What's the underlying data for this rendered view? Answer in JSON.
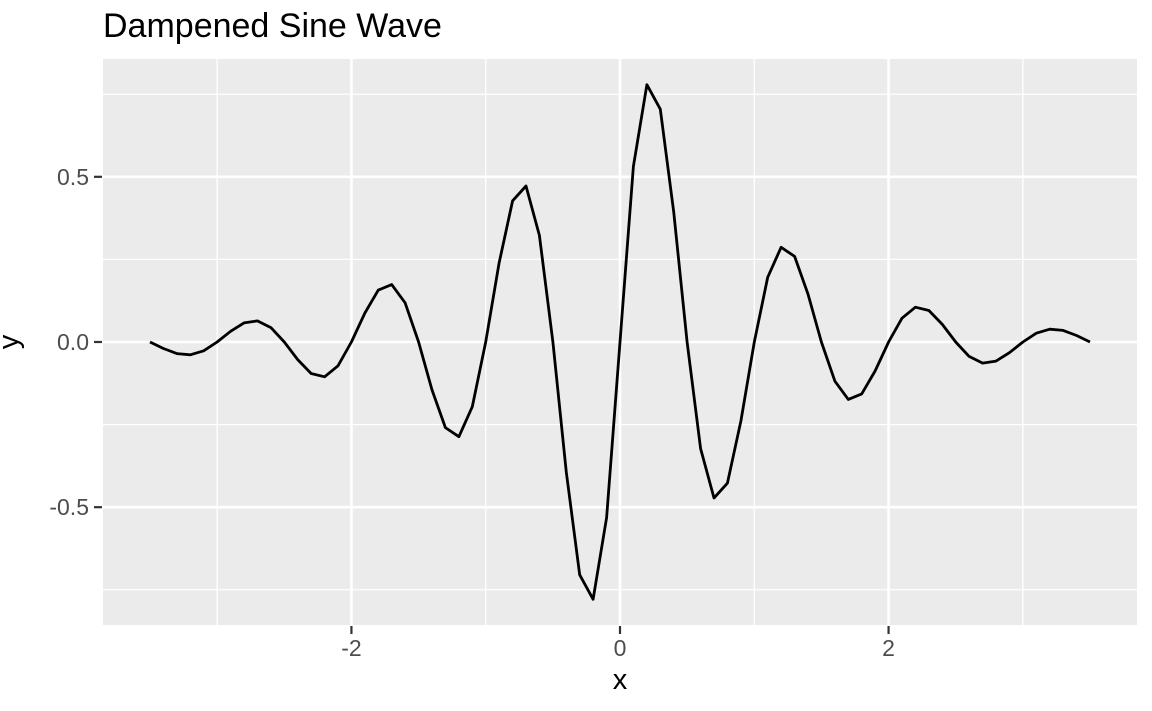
{
  "chart_data": {
    "type": "line",
    "title": "Dampened Sine Wave",
    "xlabel": "x",
    "ylabel": "y",
    "legend_position": "none",
    "grid": true,
    "xlim": [
      -3.85,
      3.85
    ],
    "ylim": [
      -0.8566,
      0.8566
    ],
    "x_major_ticks": [
      -2,
      0,
      2
    ],
    "x_major_labels": [
      "-2",
      "0",
      "2"
    ],
    "x_minor_ticks": [
      -3,
      -1,
      1,
      3
    ],
    "y_major_ticks": [
      -0.5,
      0,
      0.5
    ],
    "y_major_labels": [
      "-0.5",
      "0.0",
      "0.5"
    ],
    "y_minor_ticks": [
      -0.75,
      -0.25,
      0.25,
      0.75
    ],
    "x": [
      -3.5,
      -3.4,
      -3.3,
      -3.2,
      -3.1,
      -3.0,
      -2.9,
      -2.8,
      -2.7,
      -2.6,
      -2.5,
      -2.4,
      -2.3,
      -2.2,
      -2.1,
      -2.0,
      -1.9,
      -1.8,
      -1.7,
      -1.6,
      -1.5,
      -1.4,
      -1.3,
      -1.2,
      -1.1,
      -1.0,
      -0.9,
      -0.8,
      -0.7,
      -0.6,
      -0.5,
      -0.4,
      -0.3,
      -0.2,
      -0.1,
      0.0,
      0.1,
      0.2,
      0.3,
      0.4,
      0.5,
      0.6,
      0.7,
      0.8,
      0.9,
      1.0,
      1.1,
      1.2,
      1.3,
      1.4,
      1.5,
      1.6,
      1.7,
      1.8,
      1.9,
      2.0,
      2.1,
      2.2,
      2.3,
      2.4,
      2.5,
      2.6,
      2.7,
      2.8,
      2.9,
      3.0,
      3.1,
      3.2,
      3.3,
      3.4,
      3.5
    ],
    "y": [
      0,
      -0.0196,
      -0.0351,
      -0.0388,
      -0.0265,
      0,
      0.0323,
      0.0578,
      0.0639,
      0.0437,
      0,
      -0.0533,
      -0.0954,
      -0.1054,
      -0.072,
      0,
      0.0879,
      0.1572,
      0.1738,
      0.1187,
      0,
      -0.145,
      -0.2592,
      -0.2865,
      -0.1957,
      0,
      0.239,
      0.4273,
      0.4723,
      0.3226,
      0,
      -0.394,
      -0.7046,
      -0.7787,
      -0.5319,
      0,
      0.5319,
      0.7787,
      0.7046,
      0.394,
      0,
      -0.3226,
      -0.4723,
      -0.4273,
      -0.239,
      0,
      0.1957,
      0.2865,
      0.2592,
      0.145,
      0,
      -0.1187,
      -0.1738,
      -0.1572,
      -0.0879,
      0,
      0.072,
      0.1054,
      0.0954,
      0.0533,
      0,
      -0.0437,
      -0.0639,
      -0.0578,
      -0.0323,
      0,
      0.0265,
      0.0388,
      0.0351,
      0.0196,
      0
    ],
    "style": {
      "panel_bg": "#EBEBEB",
      "grid_color": "#FFFFFF",
      "line_color": "#000000",
      "tick_mark_color": "#333333",
      "tick_label_color": "#4D4D4D",
      "title_color": "#000000"
    }
  }
}
